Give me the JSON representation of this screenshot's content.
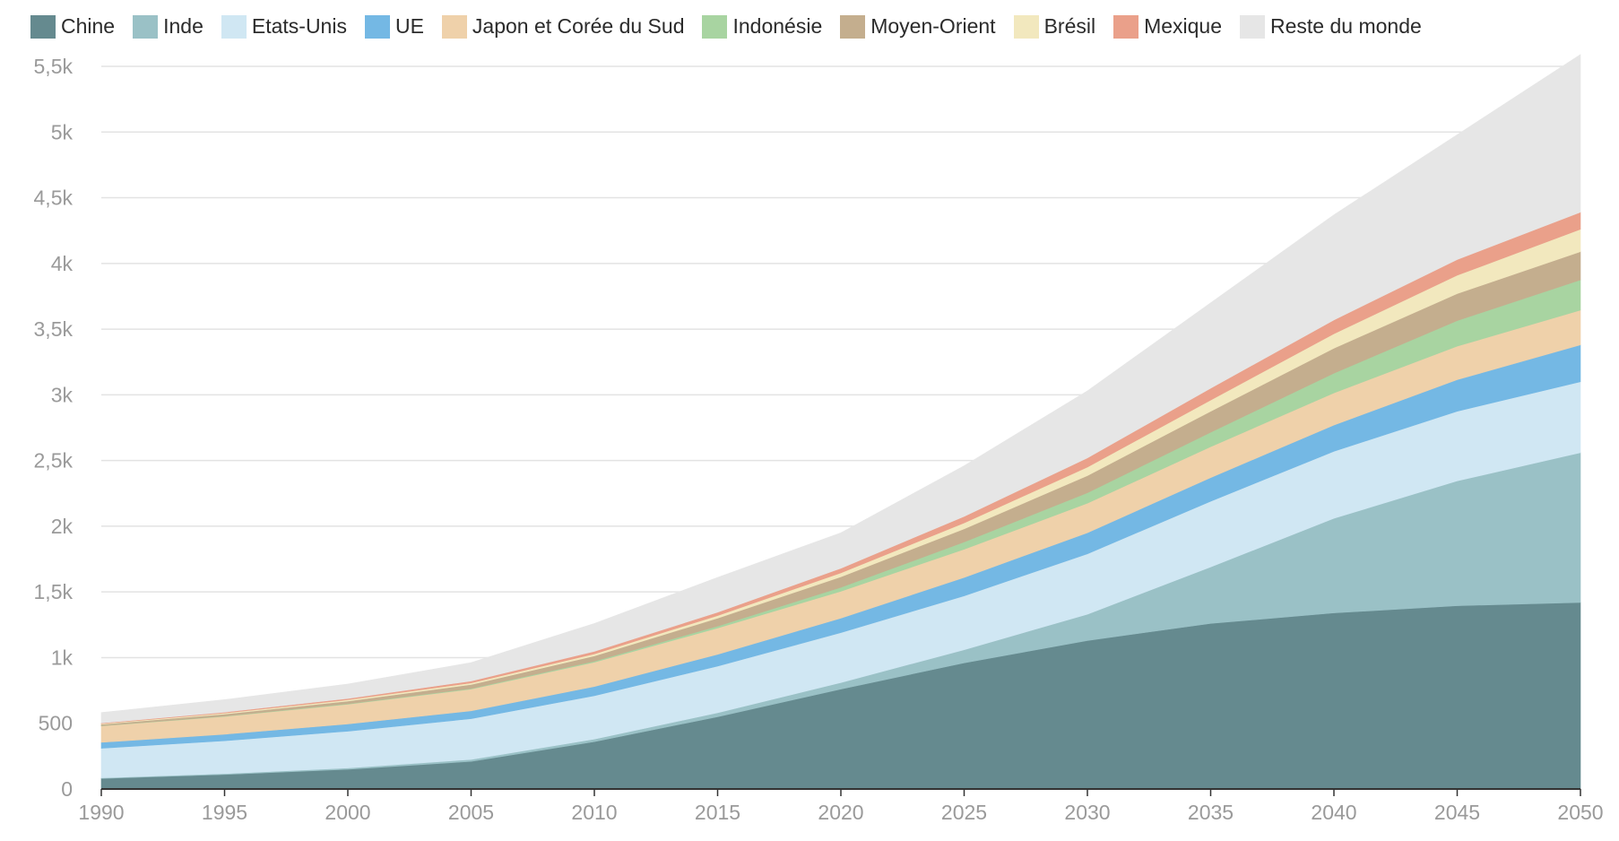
{
  "chart_data": {
    "type": "area",
    "stacked": true,
    "title": "",
    "xlabel": "",
    "ylabel": "",
    "xlim": [
      1990,
      2050
    ],
    "ylim": [
      0,
      5500
    ],
    "grid": true,
    "legend_position": "top-left",
    "x_ticks": [
      "1990",
      "1995",
      "2000",
      "2005",
      "2010",
      "2015",
      "2020",
      "2025",
      "2030",
      "2035",
      "2040",
      "2045",
      "2050"
    ],
    "y_ticks": [
      "0",
      "500",
      "1k",
      "1,5k",
      "2k",
      "2,5k",
      "3k",
      "3,5k",
      "4k",
      "4,5k",
      "5k",
      "5,5k"
    ],
    "x": [
      1990,
      1995,
      2000,
      2005,
      2010,
      2015,
      2020,
      2025,
      2030,
      2035,
      2040,
      2045,
      2050
    ],
    "series": [
      {
        "name": "Chine",
        "color": "#658a8f",
        "values": [
          80,
          110,
          150,
          210,
          360,
          550,
          760,
          960,
          1130,
          1260,
          1340,
          1395,
          1420
        ]
      },
      {
        "name": "Inde",
        "color": "#9ac1c6",
        "values": [
          5,
          7,
          10,
          15,
          20,
          30,
          50,
          100,
          200,
          430,
          720,
          950,
          1140
        ]
      },
      {
        "name": "Etats-Unis",
        "color": "#d0e7f3",
        "values": [
          225,
          250,
          280,
          310,
          330,
          355,
          380,
          410,
          460,
          500,
          510,
          530,
          540
        ]
      },
      {
        "name": "UE",
        "color": "#74b8e4",
        "values": [
          45,
          50,
          55,
          60,
          70,
          90,
          110,
          140,
          160,
          180,
          200,
          240,
          280
        ]
      },
      {
        "name": "Japon et Corée du Sud",
        "color": "#efd1aa",
        "values": [
          125,
          135,
          150,
          165,
          185,
          200,
          205,
          215,
          225,
          235,
          245,
          255,
          265
        ]
      },
      {
        "name": "Indonésie",
        "color": "#a8d4a1",
        "values": [
          2,
          3,
          4,
          5,
          8,
          15,
          30,
          55,
          80,
          110,
          150,
          195,
          230
        ]
      },
      {
        "name": "Moyen-Orient",
        "color": "#c4ae8e",
        "values": [
          10,
          15,
          20,
          30,
          40,
          60,
          80,
          100,
          130,
          160,
          190,
          205,
          215
        ]
      },
      {
        "name": "Brésil",
        "color": "#f2e8be",
        "values": [
          5,
          8,
          10,
          12,
          15,
          20,
          30,
          45,
          65,
          85,
          110,
          140,
          170
        ]
      },
      {
        "name": "Mexique",
        "color": "#eaa08a",
        "values": [
          5,
          7,
          10,
          15,
          20,
          25,
          35,
          50,
          70,
          90,
          105,
          120,
          130
        ]
      },
      {
        "name": "Reste du monde",
        "color": "#e6e6e6",
        "values": [
          80,
          95,
          110,
          140,
          212,
          265,
          270,
          385,
          510,
          650,
          800,
          950,
          1200
        ]
      }
    ]
  }
}
